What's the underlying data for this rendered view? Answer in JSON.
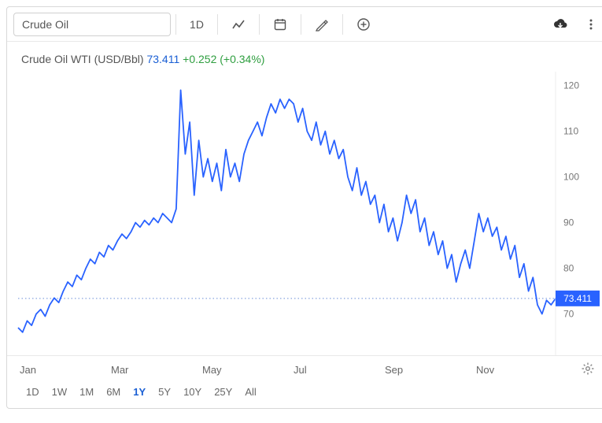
{
  "toolbar": {
    "symbol_value": "Crude Oil",
    "period_button": "1D"
  },
  "meta": {
    "title": "Crude Oil WTI (USD/Bbl)",
    "price": "73.411",
    "change_abs": "+0.252",
    "change_pct": "(+0.34%)"
  },
  "chart": {
    "type": "line",
    "line_color": "#2962ff",
    "line_width": 1.8,
    "grid_color": "#e0e0e0",
    "dotted_line_color": "#6b8fd6",
    "background_color": "#ffffff",
    "y_axis": {
      "min": 62,
      "max": 122,
      "ticks": [
        70,
        80,
        90,
        100,
        110,
        120
      ],
      "color": "#777"
    },
    "x_axis": {
      "labels": [
        "Jan",
        "Mar",
        "May",
        "Jul",
        "Sep",
        "Nov"
      ],
      "positions": [
        0.02,
        0.19,
        0.37,
        0.55,
        0.72,
        0.9
      ]
    },
    "current_value": 73.411,
    "current_label": "73.411",
    "series": [
      67.0,
      66.0,
      68.5,
      67.5,
      70.0,
      71.0,
      69.5,
      72.0,
      73.5,
      72.5,
      75.0,
      77.0,
      76.0,
      78.5,
      77.5,
      80.0,
      82.0,
      81.0,
      83.5,
      82.5,
      85.0,
      84.0,
      86.0,
      87.5,
      86.5,
      88.0,
      90.0,
      89.0,
      90.5,
      89.5,
      91.0,
      90.0,
      92.0,
      91.0,
      90.0,
      93.0,
      119.0,
      105.0,
      112.0,
      96.0,
      108.0,
      100.0,
      104.0,
      99.0,
      103.0,
      97.0,
      106.0,
      100.0,
      103.0,
      99.0,
      105.0,
      108.0,
      110.0,
      112.0,
      109.0,
      113.0,
      116.0,
      114.0,
      117.0,
      115.0,
      117.0,
      116.0,
      112.0,
      115.0,
      110.0,
      108.0,
      112.0,
      107.0,
      110.0,
      105.0,
      108.0,
      104.0,
      106.0,
      100.0,
      97.0,
      102.0,
      96.0,
      99.0,
      94.0,
      96.0,
      90.0,
      94.0,
      88.0,
      91.0,
      86.0,
      90.0,
      96.0,
      92.0,
      95.0,
      88.0,
      91.0,
      85.0,
      88.0,
      83.0,
      86.0,
      80.0,
      83.0,
      77.0,
      81.0,
      84.0,
      80.0,
      86.0,
      92.0,
      88.0,
      91.0,
      87.0,
      89.0,
      84.0,
      87.0,
      82.0,
      85.0,
      78.0,
      81.0,
      75.0,
      78.0,
      72.0,
      70.0,
      73.0,
      72.0,
      73.4
    ]
  },
  "footer": {
    "ranges": [
      "1D",
      "1W",
      "1M",
      "6M",
      "1Y",
      "5Y",
      "10Y",
      "25Y",
      "All"
    ],
    "active_range": "1Y"
  }
}
